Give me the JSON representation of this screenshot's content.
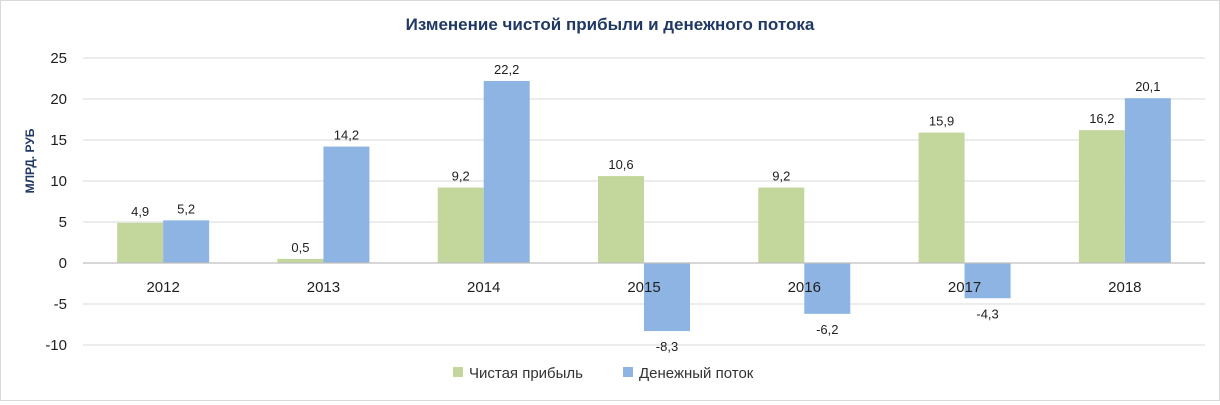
{
  "chart_data": {
    "type": "bar",
    "title": "Изменение чистой прибыли и денежного потока",
    "ylabel": "МЛРД. РУБ",
    "xlabel": "",
    "categories": [
      "2012",
      "2013",
      "2014",
      "2015",
      "2016",
      "2017",
      "2018"
    ],
    "series": [
      {
        "name": "Чистая прибыль",
        "values": [
          4.9,
          0.5,
          9.2,
          10.6,
          9.2,
          15.9,
          16.2
        ],
        "labels": [
          "4,9",
          "0,5",
          "9,2",
          "10,6",
          "9,2",
          "15,9",
          "16,2"
        ],
        "color": "#c3d69b"
      },
      {
        "name": "Денежный поток",
        "values": [
          5.2,
          14.2,
          22.2,
          -8.3,
          -6.2,
          -4.3,
          20.1
        ],
        "labels": [
          "5,2",
          "14,2",
          "22,2",
          "-8,3",
          "-6,2",
          "-4,3",
          "20,1"
        ],
        "color": "#8eb4e3"
      }
    ],
    "ylim": [
      -10,
      25
    ],
    "yticks": [
      -10,
      -5,
      0,
      5,
      10,
      15,
      20,
      25
    ],
    "grid": true,
    "legend_position": "bottom"
  }
}
